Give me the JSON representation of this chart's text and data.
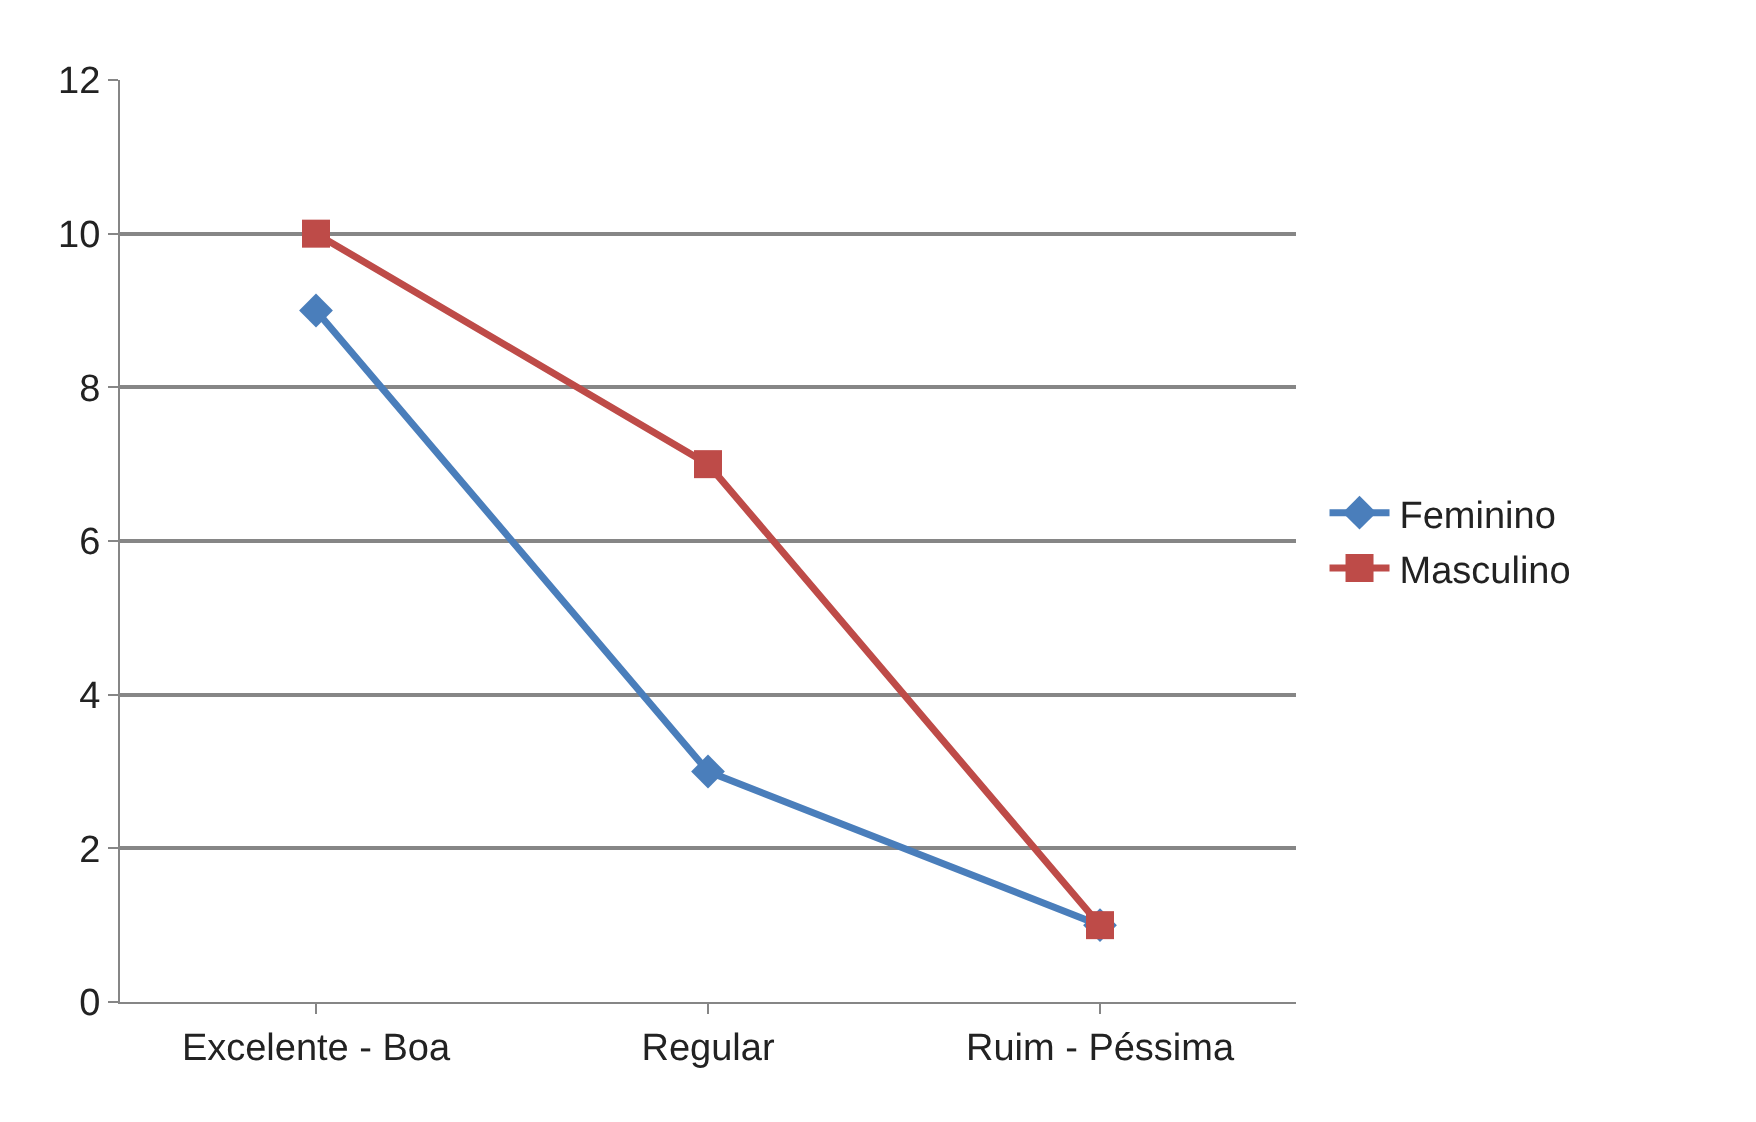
{
  "chart_data": {
    "type": "line",
    "categories": [
      "Excelente - Boa",
      "Regular",
      "Ruim - Péssima"
    ],
    "series": [
      {
        "name": "Feminino",
        "color": "#4a7ebb",
        "values": [
          9,
          3,
          1
        ],
        "marker": "diamond"
      },
      {
        "name": "Masculino",
        "color": "#be4b48",
        "values": [
          10,
          7,
          1
        ],
        "marker": "square"
      }
    ],
    "ylim": [
      0,
      12
    ],
    "yticks": [
      0,
      2,
      4,
      6,
      8,
      10,
      12
    ],
    "grid": "y",
    "legend": "right",
    "line_style": "solid"
  }
}
